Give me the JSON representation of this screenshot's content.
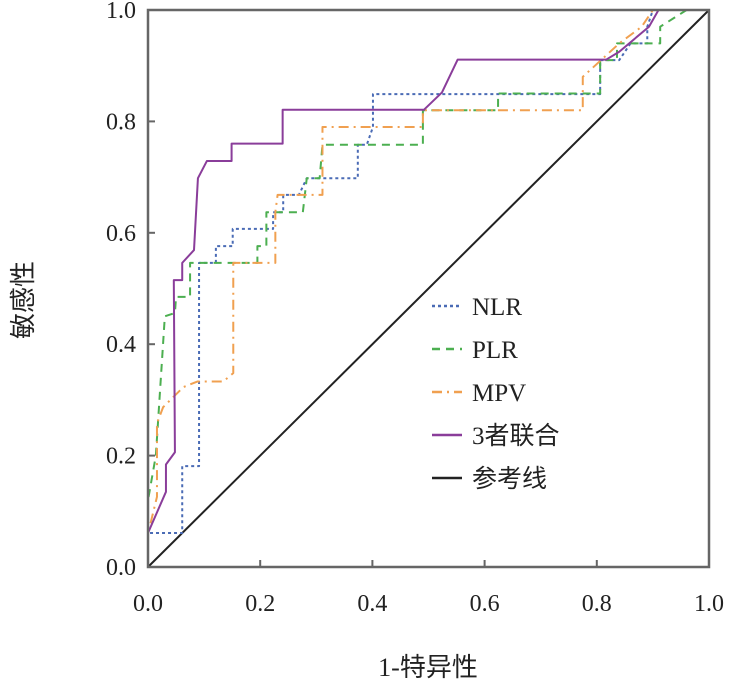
{
  "chart_data": {
    "type": "line",
    "title": "",
    "xlabel": "1-特异性",
    "ylabel": "敏感性",
    "xlim": [
      0,
      1
    ],
    "ylim": [
      0,
      1
    ],
    "xticks": [
      "0.0",
      "0.2",
      "0.4",
      "0.6",
      "0.8",
      "1.0"
    ],
    "yticks": [
      "0.0",
      "0.2",
      "0.4",
      "0.6",
      "0.8",
      "1.0"
    ],
    "grid": false,
    "legend_position": "center-right",
    "series": [
      {
        "name": "NLR",
        "color": "#4a6bb5",
        "dash": "dotted",
        "x": [
          0,
          0,
          0.061,
          0.061,
          0.091,
          0.091,
          0.121,
          0.121,
          0.151,
          0.151,
          0.223,
          0.223,
          0.241,
          0.241,
          0.269,
          0.283,
          0.374,
          0.374,
          0.39,
          0.401,
          0.401,
          0.806,
          0.806,
          0.84,
          0.86,
          0.89,
          0.89,
          0.9,
          1
        ],
        "y": [
          0,
          0.061,
          0.061,
          0.181,
          0.181,
          0.546,
          0.546,
          0.576,
          0.576,
          0.607,
          0.607,
          0.637,
          0.637,
          0.668,
          0.668,
          0.698,
          0.698,
          0.758,
          0.758,
          0.79,
          0.849,
          0.849,
          0.91,
          0.91,
          0.94,
          0.94,
          0.97,
          1,
          1
        ]
      },
      {
        "name": "PLR",
        "color": "#4caf50",
        "dash": "dashed",
        "x": [
          0,
          0,
          0.014,
          0.03,
          0.048,
          0.05,
          0.075,
          0.075,
          0.195,
          0.195,
          0.211,
          0.211,
          0.276,
          0.283,
          0.306,
          0.311,
          0.49,
          0.49,
          0.624,
          0.624,
          0.806,
          0.806,
          0.836,
          0.836,
          0.913,
          0.913,
          0.96,
          1
        ],
        "y": [
          0,
          0.12,
          0.2,
          0.45,
          0.456,
          0.485,
          0.485,
          0.546,
          0.546,
          0.576,
          0.576,
          0.637,
          0.637,
          0.698,
          0.698,
          0.758,
          0.758,
          0.82,
          0.82,
          0.85,
          0.85,
          0.91,
          0.91,
          0.94,
          0.94,
          0.97,
          1,
          1
        ]
      },
      {
        "name": "MPV",
        "color": "#f0a050",
        "dash": "dashdot",
        "x": [
          0,
          0,
          0.016,
          0.016,
          0.027,
          0.063,
          0.088,
          0.134,
          0.152,
          0.152,
          0.227,
          0.227,
          0.231,
          0.311,
          0.311,
          0.49,
          0.49,
          0.775,
          0.775,
          0.84,
          0.88,
          0.9,
          1
        ],
        "y": [
          0,
          0.06,
          0.126,
          0.258,
          0.287,
          0.323,
          0.333,
          0.333,
          0.348,
          0.546,
          0.546,
          0.637,
          0.668,
          0.668,
          0.79,
          0.79,
          0.82,
          0.82,
          0.88,
          0.94,
          0.97,
          1,
          1
        ]
      },
      {
        "name": "3者联合",
        "color": "#8a3d9a",
        "dash": "solid",
        "x": [
          0,
          0,
          0.032,
          0.032,
          0.048,
          0.046,
          0.061,
          0.061,
          0.082,
          0.089,
          0.105,
          0.149,
          0.149,
          0.24,
          0.24,
          0.492,
          0.524,
          0.552,
          0.817,
          0.84,
          0.893,
          0.91,
          1
        ],
        "y": [
          0,
          0.061,
          0.135,
          0.184,
          0.206,
          0.515,
          0.515,
          0.546,
          0.569,
          0.698,
          0.729,
          0.729,
          0.76,
          0.76,
          0.821,
          0.821,
          0.852,
          0.911,
          0.911,
          0.925,
          0.97,
          1,
          1
        ]
      },
      {
        "name": "参考线",
        "color": "#222222",
        "dash": "solid",
        "x": [
          0,
          1
        ],
        "y": [
          0,
          1
        ]
      }
    ]
  }
}
